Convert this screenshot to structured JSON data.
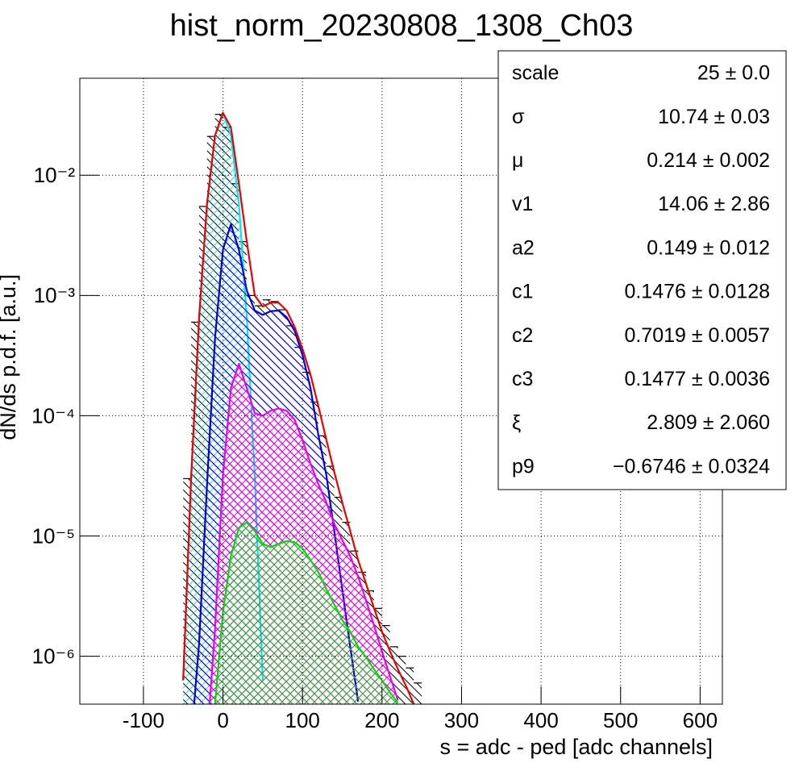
{
  "chart_data": {
    "type": "line",
    "title": "hist_norm_20230808_1308_Ch03",
    "x_label": "s = adc - ped [adc channels]",
    "y_label": "dN/ds p.d.f. [a.u.]",
    "xlim": [
      -180,
      628
    ],
    "ylim": [
      4e-07,
      0.064
    ],
    "log_y": true,
    "grid": true,
    "xticks": [
      -100,
      0,
      100,
      200,
      300,
      400,
      500,
      600
    ],
    "yticks": [
      {
        "value": 0.01,
        "label": "10⁻²"
      },
      {
        "value": 0.001,
        "label": "10⁻³"
      },
      {
        "value": 0.0001,
        "label": "10⁻⁴"
      },
      {
        "value": 1e-05,
        "label": "10⁻⁵"
      },
      {
        "value": 1e-06,
        "label": "10⁻⁶"
      }
    ],
    "histogram": {
      "color": "#000000",
      "hatch": "\\",
      "bins": [
        -50,
        -40,
        -30,
        -20,
        -10,
        0,
        10,
        20,
        30,
        40,
        50,
        60,
        70,
        80,
        90,
        100,
        110,
        120,
        130,
        140,
        150,
        160,
        170,
        180,
        190,
        200,
        210,
        220,
        230,
        240,
        250
      ],
      "counts": [
        3e-05,
        0.0006,
        0.0055,
        0.021,
        0.032,
        0.025,
        0.0085,
        0.0028,
        0.001,
        0.00082,
        0.00092,
        0.00089,
        0.00076,
        0.00056,
        0.00037,
        0.00023,
        0.00013,
        6.8e-05,
        3.8e-05,
        2.1e-05,
        1.3e-05,
        7.5e-06,
        5e-06,
        3.5e-06,
        2.5e-06,
        1.8e-06,
        1.2e-06,
        1e-06,
        8e-07,
        6e-07
      ]
    },
    "series": [
      {
        "color": "#00e5ee",
        "hatch": "/",
        "x": [
          -50,
          -40,
          -30,
          -20,
          -10,
          0,
          10,
          20,
          30,
          40,
          50
        ],
        "values": [
          6.3e-07,
          3.1e-05,
          0.00066,
          0.0058,
          0.0214,
          0.033,
          0.0214,
          0.0058,
          0.00066,
          3.1e-05,
          6.3e-07
        ]
      },
      {
        "color": "#0000dd",
        "hatch": "\\",
        "x": [
          -40,
          -30,
          -20,
          -10,
          0,
          10,
          20,
          30,
          40,
          50,
          60,
          70,
          80,
          90,
          100,
          110,
          120,
          130,
          140,
          150,
          160,
          170
        ],
        "values": [
          2e-07,
          1.3e-06,
          2.7e-05,
          0.00044,
          0.0024,
          0.0039,
          0.0024,
          0.0011,
          0.00075,
          0.00069,
          0.00074,
          0.00075,
          0.00066,
          0.00051,
          0.00032,
          0.00017,
          6.9e-05,
          3.2e-05,
          1.1e-05,
          3.6e-06,
          1.2e-06,
          4.2e-07
        ]
      },
      {
        "color": "#ee00ee",
        "hatch": "x",
        "x": [
          -20,
          -10,
          0,
          10,
          20,
          30,
          40,
          50,
          60,
          70,
          80,
          90,
          100,
          110,
          120,
          130,
          140,
          150,
          160,
          170,
          180,
          190,
          200,
          210,
          220
        ],
        "values": [
          2e-07,
          1.7e-06,
          3.2e-05,
          0.00017,
          0.00027,
          0.00017,
          0.000105,
          0.0001,
          0.00011,
          0.000115,
          0.00011,
          9.3e-05,
          6.3e-05,
          4e-05,
          2.7e-05,
          1.9e-05,
          1.26e-05,
          9.3e-06,
          6.8e-06,
          4.6e-06,
          2.9e-06,
          1.8e-06,
          1.1e-06,
          6.8e-07,
          4.3e-07
        ]
      },
      {
        "color": "#00dd00",
        "hatch": "\\",
        "x": [
          -10,
          0,
          10,
          20,
          30,
          40,
          50,
          60,
          70,
          80,
          90,
          100,
          110,
          120,
          130,
          140,
          150,
          160,
          170,
          180,
          190,
          200,
          210,
          220
        ],
        "values": [
          4e-07,
          2.3e-06,
          6.8e-06,
          1.17e-05,
          1.3e-05,
          1.1e-05,
          8.6e-06,
          8.1e-06,
          8.6e-06,
          9.1e-06,
          8.9e-06,
          7.9e-06,
          6.3e-06,
          5e-06,
          3.6e-06,
          2.7e-06,
          2e-06,
          1.6e-06,
          1.2e-06,
          9.8e-07,
          7.8e-07,
          6.3e-07,
          5e-07,
          4.1e-07
        ]
      },
      {
        "color": "#ee0000",
        "x": [
          -50,
          -40,
          -30,
          -20,
          -10,
          0,
          10,
          20,
          30,
          40,
          50,
          60,
          70,
          80,
          90,
          100,
          110,
          120,
          130,
          140,
          150,
          160,
          170,
          180,
          190,
          200,
          210,
          220,
          230,
          240
        ],
        "values": [
          6.3e-07,
          3.1e-05,
          0.00066,
          0.0058,
          0.0214,
          0.033,
          0.025,
          0.0085,
          0.0028,
          0.001,
          0.00081,
          0.00087,
          0.00087,
          0.00075,
          0.00055,
          0.00036,
          0.00022,
          0.00012,
          6.3e-05,
          3.4e-05,
          1.9e-05,
          1.1e-05,
          6.3e-06,
          4e-06,
          2.5e-06,
          1.6e-06,
          1.1e-06,
          7.8e-07,
          5.7e-07,
          4e-07
        ]
      }
    ],
    "stats": [
      {
        "name": "scale",
        "value": "25 ± 0.0"
      },
      {
        "name": "σ",
        "value": "10.74 ± 0.03"
      },
      {
        "name": "μ",
        "value": "0.214 ± 0.002"
      },
      {
        "name": "v1",
        "value": "14.06 ± 2.86"
      },
      {
        "name": "a2",
        "value": "0.149 ± 0.012"
      },
      {
        "name": "c1",
        "value": "0.1476 ± 0.0128"
      },
      {
        "name": "c2",
        "value": "0.7019 ± 0.0057"
      },
      {
        "name": "c3",
        "value": "0.1477 ± 0.0036"
      },
      {
        "name": "ξ",
        "value": "2.809 ± 2.060"
      },
      {
        "name": "p9",
        "value": "−0.6746 ± 0.0324"
      }
    ]
  }
}
